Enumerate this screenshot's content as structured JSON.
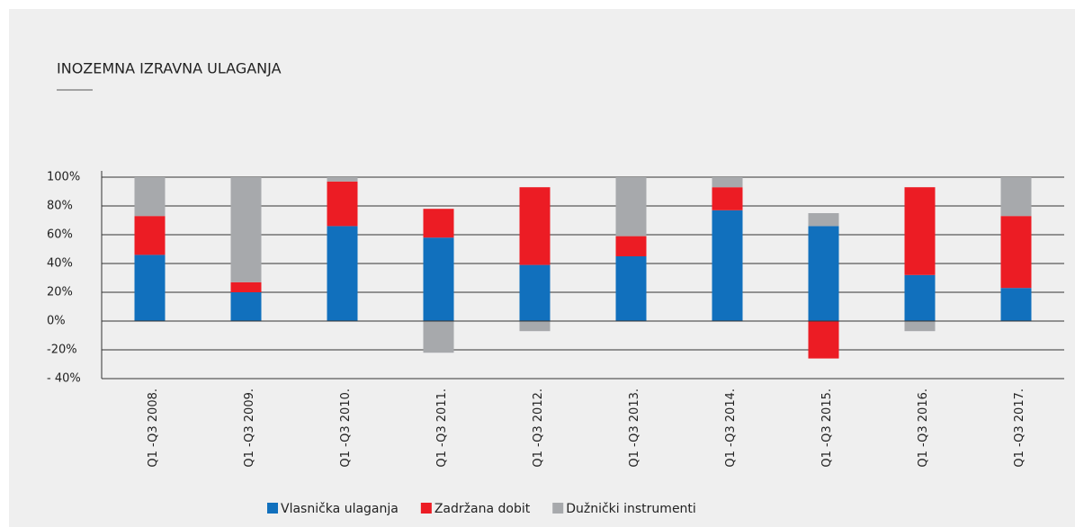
{
  "chart_data": {
    "type": "stacked_bar",
    "title": "INOZEMNA IZRAVNA ULAGANJA",
    "categories": [
      "Q1 -Q3 2008.",
      "Q1 -Q3 2009.",
      "Q1 -Q3 2010.",
      "Q1 -Q3 2011.",
      "Q1 -Q3 2012.",
      "Q1 -Q3 2013.",
      "Q1 -Q3 2014.",
      "Q1 -Q3 2015.",
      "Q1 -Q3 2016.",
      "Q1 -Q3 2017."
    ],
    "series": [
      {
        "name": "Vlasnička ulaganja",
        "color": "#1170bd",
        "values": [
          46,
          20,
          66,
          58,
          39,
          45,
          77,
          66,
          32,
          23
        ]
      },
      {
        "name": "Zadržana dobit",
        "color": "#ec1c24",
        "values": [
          27,
          7,
          31,
          20,
          54,
          14,
          16,
          -26,
          61,
          50
        ]
      },
      {
        "name": "Dužnički instrumenti",
        "color": "#a7a9ac",
        "values": [
          27,
          73,
          3,
          -22,
          -7,
          41,
          7,
          9,
          -7,
          27
        ]
      }
    ],
    "ylim": [
      -40,
      100
    ],
    "yticks": [
      {
        "value": -40,
        "label": "- 40%"
      },
      {
        "value": -20,
        "label": "-20%"
      },
      {
        "value": 0,
        "label": "0%"
      },
      {
        "value": 20,
        "label": "20%"
      },
      {
        "value": 40,
        "label": "40%"
      },
      {
        "value": 60,
        "label": "60%"
      },
      {
        "value": 80,
        "label": "80%"
      },
      {
        "value": 100,
        "label": "100%"
      }
    ],
    "grid": true
  }
}
